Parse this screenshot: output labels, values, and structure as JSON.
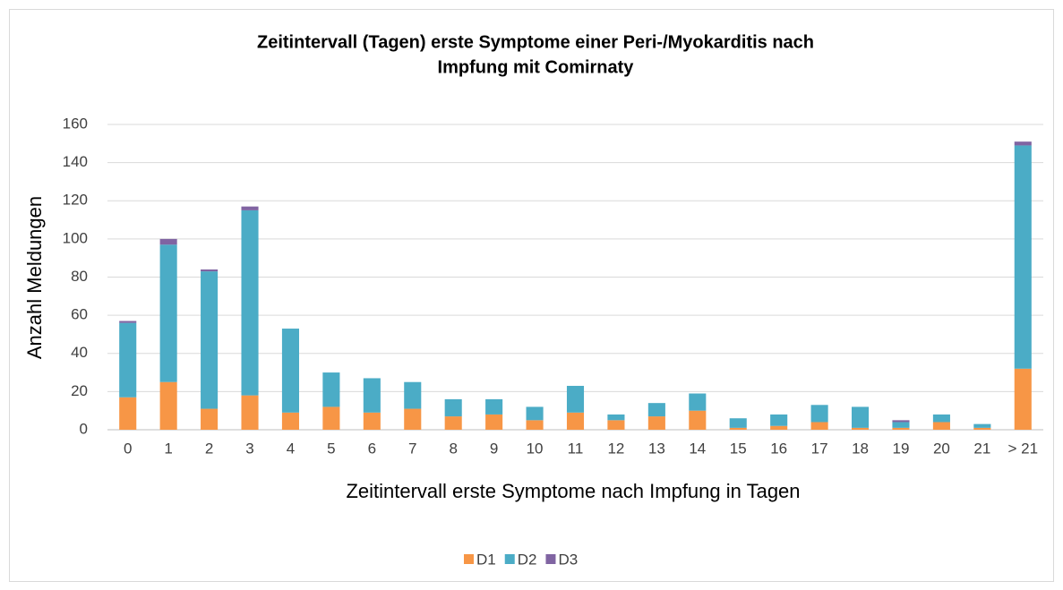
{
  "chart_data": {
    "type": "stacked_bar",
    "title": [
      "Zeitintervall (Tagen) erste Symptome einer Peri-/Myokarditis nach",
      "Impfung mit Comirnaty"
    ],
    "x_label": "Zeitintervall erste Symptome nach Impfung in Tagen",
    "y_label": "Anzahl Meldungen",
    "categories": [
      "0",
      "1",
      "2",
      "3",
      "4",
      "5",
      "6",
      "7",
      "8",
      "9",
      "10",
      "11",
      "12",
      "13",
      "14",
      "15",
      "16",
      "17",
      "18",
      "19",
      "20",
      "21",
      "> 21"
    ],
    "series": [
      {
        "name": "D1",
        "color": "#f79646",
        "values": [
          17,
          25,
          11,
          18,
          9,
          12,
          9,
          11,
          7,
          8,
          5,
          9,
          5,
          7,
          10,
          1,
          2,
          4,
          1,
          1,
          4,
          1,
          32
        ]
      },
      {
        "name": "D2",
        "color": "#4bacc6",
        "values": [
          39,
          72,
          72,
          97,
          44,
          18,
          18,
          14,
          9,
          8,
          7,
          14,
          3,
          7,
          9,
          5,
          6,
          9,
          11,
          3,
          4,
          2,
          117
        ]
      },
      {
        "name": "D3",
        "color": "#8064a2",
        "values": [
          1,
          3,
          1,
          2,
          0,
          0,
          0,
          0,
          0,
          0,
          0,
          0,
          0,
          0,
          0,
          0,
          0,
          0,
          0,
          1,
          0,
          0,
          2
        ]
      }
    ],
    "ylim": [
      0,
      160
    ],
    "yticks": [
      0,
      20,
      40,
      60,
      80,
      100,
      120,
      140,
      160
    ],
    "grid": true,
    "legend": "bottom"
  }
}
